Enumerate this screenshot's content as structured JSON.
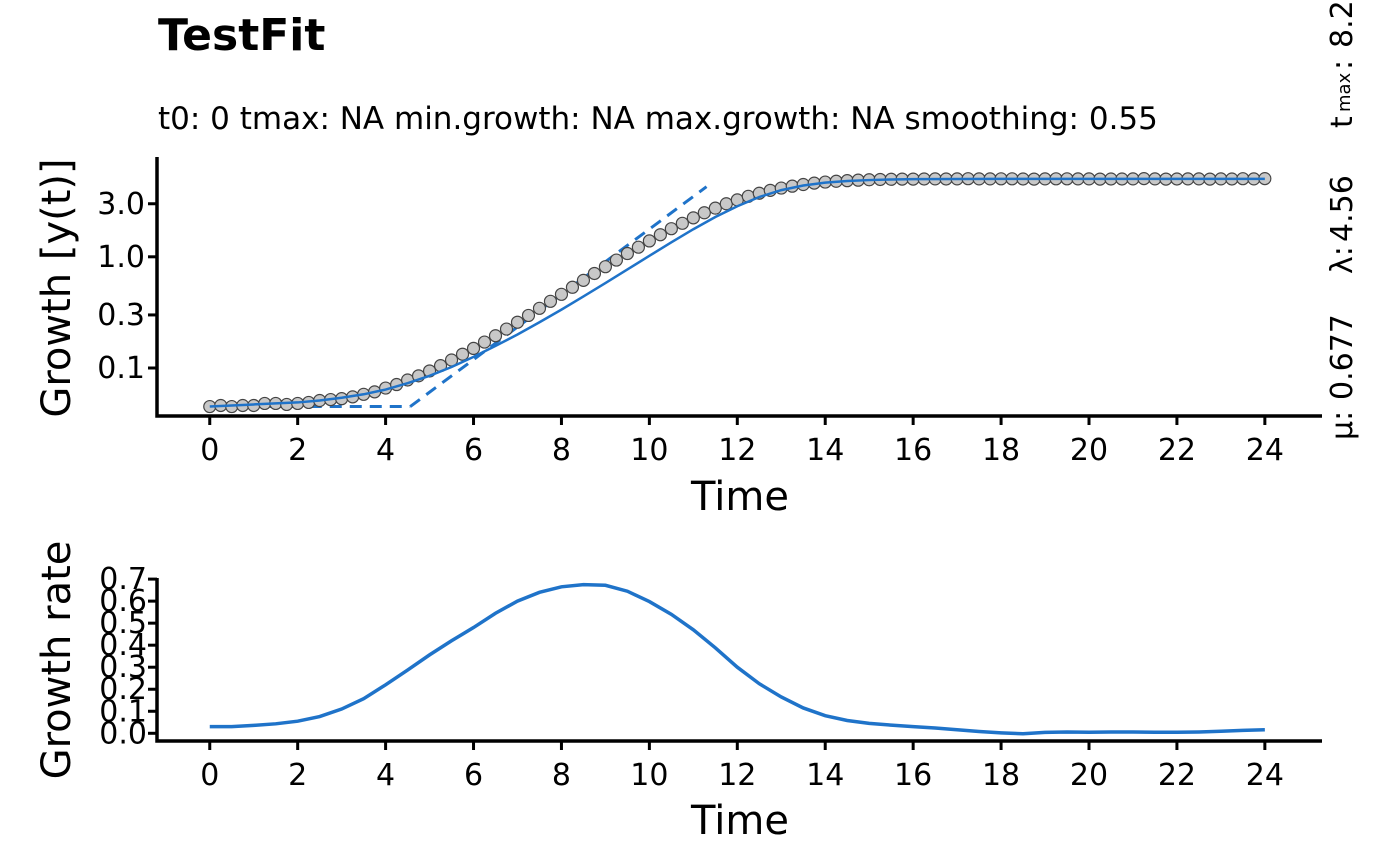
{
  "figure": {
    "title": "TestFit",
    "subtitle": "t0: 0  tmax: NA   min.growth: NA   max.growth: NA   smoothing: 0.55",
    "side_annotations": {
      "mu_label": "μ:",
      "mu_value": "0.677",
      "lambda_label": "λ:",
      "lambda_value": "4.56",
      "tmax_label": "t",
      "tmax_sub": "max",
      "tmax_sep": ":",
      "tmax_value": "8.2"
    }
  },
  "colors": {
    "line": "#1f73c9",
    "points_fill": "#c8c8c8",
    "points_stroke": "#444444",
    "axis": "#000000"
  },
  "chart_data": [
    {
      "type": "scatter",
      "name": "growth-curve",
      "xlabel": "Time",
      "ylabel": "Growth [y(t)]",
      "y_scale": "log",
      "x_ticks": [
        0,
        2,
        4,
        6,
        8,
        10,
        12,
        14,
        16,
        18,
        20,
        22,
        24
      ],
      "x_tick_labels": [
        "0",
        "2",
        "4",
        "6",
        "8",
        "10",
        "12",
        "14",
        "16",
        "18",
        "20",
        "22",
        "24"
      ],
      "y_ticks": [
        0.1,
        0.3,
        1.0,
        3.0
      ],
      "y_tick_labels": [
        "0.1",
        "0.3",
        "1.0",
        "3.0"
      ],
      "xlim": [
        -1.2,
        25.3
      ],
      "ylim": [
        0.037,
        7.9
      ],
      "grid": false,
      "observations": {
        "x": [
          0,
          0.25,
          0.5,
          0.75,
          1,
          1.25,
          1.5,
          1.75,
          2,
          2.25,
          2.5,
          2.75,
          3,
          3.25,
          3.5,
          3.75,
          4,
          4.25,
          4.5,
          4.75,
          5,
          5.25,
          5.5,
          5.75,
          6,
          6.25,
          6.5,
          6.75,
          7,
          7.25,
          7.5,
          7.75,
          8,
          8.25,
          8.5,
          8.75,
          9,
          9.25,
          9.5,
          9.75,
          10,
          10.25,
          10.5,
          10.75,
          11,
          11.25,
          11.5,
          11.75,
          12,
          12.25,
          12.5,
          12.75,
          13,
          13.25,
          13.5,
          13.75,
          14,
          14.25,
          14.5,
          14.75,
          15,
          15.25,
          15.5,
          15.75,
          16,
          16.25,
          16.5,
          16.75,
          17,
          17.25,
          17.5,
          17.75,
          18,
          18.25,
          18.5,
          18.75,
          19,
          19.25,
          19.5,
          19.75,
          20,
          20.25,
          20.5,
          20.75,
          21,
          21.25,
          21.5,
          21.75,
          22,
          22.25,
          22.5,
          22.75,
          23,
          23.25,
          23.5,
          23.75,
          24
        ],
        "y": [
          0.045,
          0.046,
          0.045,
          0.046,
          0.046,
          0.048,
          0.048,
          0.047,
          0.048,
          0.049,
          0.051,
          0.052,
          0.053,
          0.055,
          0.058,
          0.061,
          0.066,
          0.071,
          0.078,
          0.085,
          0.094,
          0.105,
          0.118,
          0.133,
          0.15,
          0.171,
          0.195,
          0.224,
          0.258,
          0.297,
          0.344,
          0.398,
          0.46,
          0.532,
          0.614,
          0.708,
          0.815,
          0.935,
          1.07,
          1.22,
          1.39,
          1.58,
          1.79,
          2.0,
          2.24,
          2.49,
          2.74,
          3.0,
          3.25,
          3.5,
          3.73,
          3.96,
          4.15,
          4.32,
          4.47,
          4.6,
          4.7,
          4.78,
          4.84,
          4.89,
          4.93,
          4.96,
          4.98,
          5.0,
          5.0,
          5.01,
          5.02,
          5.01,
          5.02,
          5.04,
          5.02,
          5.02,
          5.03,
          5.03,
          5.01,
          5.0,
          5.02,
          5.03,
          5.03,
          5.02,
          5.02,
          5.0,
          5.01,
          5.01,
          5.02,
          5.05,
          5.02,
          5.0,
          5.01,
          5.02,
          5.02,
          5.0,
          5.02,
          5.01,
          5.04,
          5.02,
          5.05
        ]
      },
      "fitted_curve": {
        "x": [
          0,
          0.5,
          1,
          1.5,
          2,
          2.5,
          3,
          3.5,
          4,
          4.5,
          5,
          5.5,
          6,
          6.5,
          7,
          7.5,
          8,
          8.5,
          9,
          9.5,
          10,
          10.5,
          11,
          11.5,
          12,
          12.5,
          13,
          13.5,
          14,
          14.5,
          15,
          15.5,
          16,
          17,
          18,
          19,
          20,
          21,
          22,
          23,
          24
        ],
        "y": [
          0.045,
          0.046,
          0.047,
          0.048,
          0.049,
          0.051,
          0.054,
          0.058,
          0.064,
          0.073,
          0.085,
          0.102,
          0.126,
          0.158,
          0.2,
          0.258,
          0.335,
          0.44,
          0.58,
          0.77,
          1.02,
          1.35,
          1.77,
          2.28,
          2.85,
          3.45,
          3.98,
          4.38,
          4.65,
          4.8,
          4.9,
          4.96,
          4.99,
          5.01,
          5.02,
          5.02,
          5.02,
          5.02,
          5.02,
          5.02,
          5.02
        ]
      },
      "tangent": {
        "lag_x": [
          0,
          4.56
        ],
        "lag_y": [
          0.045,
          0.045
        ],
        "slope_x": [
          4.56,
          11.3
        ],
        "slope_y": [
          0.045,
          4.27
        ],
        "mu": 0.677,
        "lambda": 4.56
      }
    },
    {
      "type": "line",
      "name": "growth-rate",
      "xlabel": "Time",
      "ylabel": "Growth rate",
      "x_ticks": [
        0,
        2,
        4,
        6,
        8,
        10,
        12,
        14,
        16,
        18,
        20,
        22,
        24
      ],
      "x_tick_labels": [
        "0",
        "2",
        "4",
        "6",
        "8",
        "10",
        "12",
        "14",
        "16",
        "18",
        "20",
        "22",
        "24"
      ],
      "y_ticks": [
        0.0,
        0.1,
        0.2,
        0.3,
        0.4,
        0.5,
        0.6,
        0.7
      ],
      "y_tick_labels": [
        "0.0",
        "0.1",
        "0.2",
        "0.3",
        "0.4",
        "0.5",
        "0.6",
        "0.7"
      ],
      "xlim": [
        -1.2,
        25.3
      ],
      "ylim": [
        -0.035,
        0.705
      ],
      "grid": false,
      "x": [
        0,
        0.5,
        1,
        1.5,
        2,
        2.5,
        3,
        3.5,
        4,
        4.5,
        5,
        5.5,
        6,
        6.5,
        7,
        7.5,
        8,
        8.5,
        9,
        9.5,
        10,
        10.5,
        11,
        11.5,
        12,
        12.5,
        13,
        13.5,
        14,
        14.5,
        15,
        15.5,
        16,
        16.5,
        17,
        17.5,
        18,
        18.5,
        19,
        19.5,
        20,
        20.5,
        21,
        21.5,
        22,
        22.5,
        23,
        23.5,
        24
      ],
      "values": [
        0.03,
        0.03,
        0.036,
        0.043,
        0.055,
        0.076,
        0.11,
        0.157,
        0.22,
        0.287,
        0.356,
        0.42,
        0.48,
        0.545,
        0.6,
        0.64,
        0.665,
        0.675,
        0.672,
        0.645,
        0.598,
        0.54,
        0.47,
        0.388,
        0.3,
        0.225,
        0.165,
        0.115,
        0.08,
        0.058,
        0.045,
        0.037,
        0.03,
        0.024,
        0.016,
        0.008,
        0.002,
        -0.002,
        0.004,
        0.006,
        0.005,
        0.006,
        0.006,
        0.005,
        0.005,
        0.006,
        0.009,
        0.013,
        0.016
      ]
    }
  ]
}
